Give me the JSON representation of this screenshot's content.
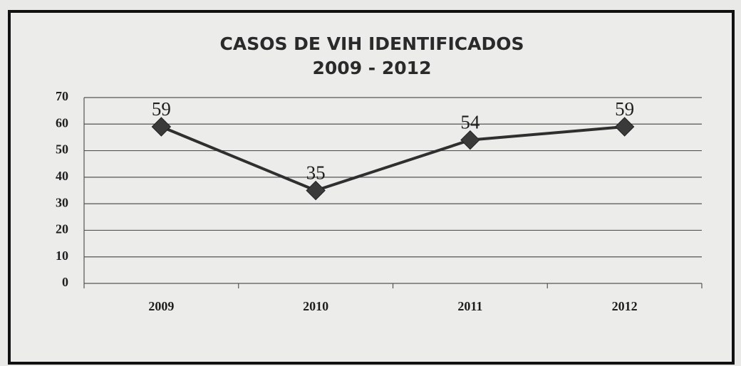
{
  "chart_data": {
    "type": "line",
    "title": "CASOS DE VIH IDENTIFICADOS",
    "subtitle": "2009 - 2012",
    "categories": [
      "2009",
      "2010",
      "2011",
      "2012"
    ],
    "values": [
      59,
      35,
      54,
      59
    ],
    "color": "#2f2f2f",
    "ylim": [
      0,
      70
    ],
    "yticks": [
      0,
      10,
      20,
      30,
      40,
      50,
      60,
      70
    ],
    "grid": true
  }
}
